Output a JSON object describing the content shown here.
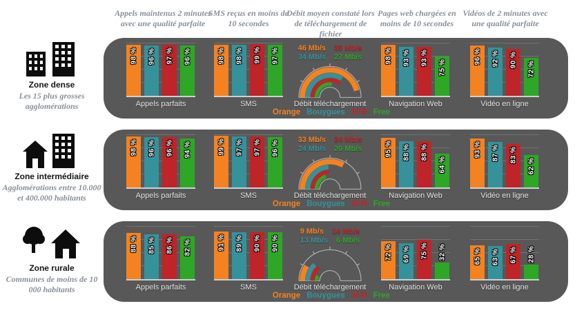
{
  "headers": [
    "Appels maintenus 2 minutes avec une qualité parfaite",
    "SMS reçus en moins de 10 secondes",
    "Débit moyen constaté lors de téléchargement de fichier",
    "Pages web chargées en moins de 10 secondes",
    "Vidéos de 2 minutes avec une qualité parfaite"
  ],
  "operators": [
    {
      "name": "Orange",
      "color": "#F58220"
    },
    {
      "name": "Bouygues",
      "color": "#35929B"
    },
    {
      "name": "SFR",
      "color": "#BE2428"
    },
    {
      "name": "Free",
      "color": "#2EA727"
    }
  ],
  "zones": [
    {
      "label": "Zone dense",
      "subtitle": "Les 15 plus grosses agglomérations",
      "icon": "buildings-icon"
    },
    {
      "label": "Zone intermédiaire",
      "subtitle": "Agglomérations entre 10.000 et 400.000 habitants",
      "icon": "house-building-icon"
    },
    {
      "label": "Zone rurale",
      "subtitle": "Communes de moins de 10 000 habitants",
      "icon": "tree-house-icon"
    }
  ],
  "gauge": {
    "max_mbps": 50,
    "unit": "Mb/s"
  },
  "colors": {
    "panel_background": "#585858",
    "page_background": "#ffffff",
    "header_text": "#8a9199",
    "axis_label": "#e4e4e4"
  },
  "chart_data": [
    {
      "type": "bar",
      "zone": "Zone dense",
      "title": "Appels parfaits",
      "categories": [
        "Orange",
        "Bouygues",
        "SFR",
        "Free"
      ],
      "values": [
        98,
        96,
        97,
        96
      ],
      "unit": "%",
      "ylim": [
        0,
        100
      ]
    },
    {
      "type": "bar",
      "zone": "Zone dense",
      "title": "SMS",
      "categories": [
        "Orange",
        "Bouygues",
        "SFR",
        "Free"
      ],
      "values": [
        98,
        98,
        99,
        97
      ],
      "unit": "%",
      "ylim": [
        0,
        100
      ]
    },
    {
      "type": "gauge",
      "zone": "Zone dense",
      "title": "Débit téléchargement",
      "categories": [
        "Orange",
        "Bouygues",
        "SFR",
        "Free"
      ],
      "values": [
        46,
        34,
        35,
        27
      ],
      "unit": "Mb/s",
      "max": 50
    },
    {
      "type": "bar",
      "zone": "Zone dense",
      "title": "Navigation Web",
      "categories": [
        "Orange",
        "Bouygues",
        "SFR",
        "Free"
      ],
      "values": [
        98,
        93,
        93,
        75
      ],
      "unit": "%",
      "ylim": [
        0,
        100
      ]
    },
    {
      "type": "bar",
      "zone": "Zone dense",
      "title": "Vidéo en ligne",
      "categories": [
        "Orange",
        "Bouygues",
        "SFR",
        "Free"
      ],
      "values": [
        96,
        92,
        90,
        72
      ],
      "unit": "%",
      "ylim": [
        0,
        100
      ]
    },
    {
      "type": "bar",
      "zone": "Zone intermédiaire",
      "title": "Appels parfaits",
      "categories": [
        "Orange",
        "Bouygues",
        "SFR",
        "Free"
      ],
      "values": [
        98,
        96,
        96,
        94
      ],
      "unit": "%",
      "ylim": [
        0,
        100
      ]
    },
    {
      "type": "bar",
      "zone": "Zone intermédiaire",
      "title": "SMS",
      "categories": [
        "Orange",
        "Bouygues",
        "SFR",
        "Free"
      ],
      "values": [
        99,
        97,
        97,
        96
      ],
      "unit": "%",
      "ylim": [
        0,
        100
      ]
    },
    {
      "type": "gauge",
      "zone": "Zone intermédiaire",
      "title": "Débit téléchargement",
      "categories": [
        "Orange",
        "Bouygues",
        "SFR",
        "Free"
      ],
      "values": [
        33,
        24,
        24,
        20
      ],
      "unit": "Mb/s",
      "max": 50
    },
    {
      "type": "bar",
      "zone": "Zone intermédiaire",
      "title": "Navigation Web",
      "categories": [
        "Orange",
        "Bouygues",
        "SFR",
        "Free"
      ],
      "values": [
        95,
        88,
        88,
        64
      ],
      "unit": "%",
      "ylim": [
        0,
        100
      ]
    },
    {
      "type": "bar",
      "zone": "Zone intermédiaire",
      "title": "Vidéo en ligne",
      "categories": [
        "Orange",
        "Bouygues",
        "SFR",
        "Free"
      ],
      "values": [
        93,
        87,
        83,
        62
      ],
      "unit": "%",
      "ylim": [
        0,
        100
      ]
    },
    {
      "type": "bar",
      "zone": "Zone rurale",
      "title": "Appels parfaits",
      "categories": [
        "Orange",
        "Bouygues",
        "SFR",
        "Free"
      ],
      "values": [
        88,
        85,
        86,
        82
      ],
      "unit": "%",
      "ylim": [
        0,
        100
      ]
    },
    {
      "type": "bar",
      "zone": "Zone rurale",
      "title": "SMS",
      "categories": [
        "Orange",
        "Bouygues",
        "SFR",
        "Free"
      ],
      "values": [
        91,
        89,
        90,
        90
      ],
      "unit": "%",
      "ylim": [
        0,
        100
      ]
    },
    {
      "type": "gauge",
      "zone": "Zone rurale",
      "title": "Débit téléchargement",
      "categories": [
        "Orange",
        "Bouygues",
        "SFR",
        "Free"
      ],
      "values": [
        9,
        13,
        14,
        6
      ],
      "unit": "Mb/s",
      "max": 50
    },
    {
      "type": "bar",
      "zone": "Zone rurale",
      "title": "Navigation Web",
      "categories": [
        "Orange",
        "Bouygues",
        "SFR",
        "Free"
      ],
      "values": [
        72,
        69,
        75,
        32
      ],
      "unit": "%",
      "ylim": [
        0,
        100
      ]
    },
    {
      "type": "bar",
      "zone": "Zone rurale",
      "title": "Vidéo en ligne",
      "categories": [
        "Orange",
        "Bouygues",
        "SFR",
        "Free"
      ],
      "values": [
        65,
        63,
        67,
        28
      ],
      "unit": "%",
      "ylim": [
        0,
        100
      ]
    }
  ]
}
